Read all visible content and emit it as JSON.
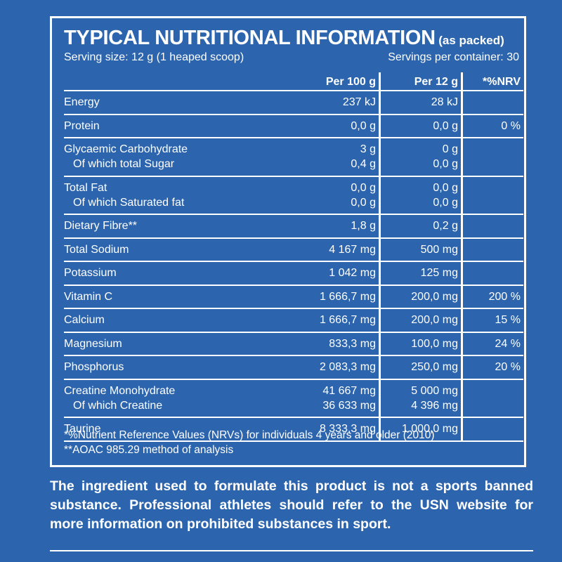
{
  "header": {
    "title": "TYPICAL NUTRITIONAL INFORMATION",
    "title_suffix": "(as packed)",
    "serving_size": "Serving size: 12 g (1 heaped scoop)",
    "servings_per_container": "Servings per container: 30"
  },
  "columns": {
    "per100": "Per 100 g",
    "perServing": "Per 12 g",
    "nrv": "*%NRV"
  },
  "rows": [
    {
      "lines": [
        {
          "name": "Energy",
          "per100": "237 kJ",
          "perServing": "28 kJ",
          "nrv": ""
        }
      ]
    },
    {
      "lines": [
        {
          "name": "Protein",
          "per100": "0,0 g",
          "perServing": "0,0 g",
          "nrv": "0 %"
        }
      ]
    },
    {
      "lines": [
        {
          "name": "Glycaemic Carbohydrate",
          "per100": "3 g",
          "perServing": "0 g",
          "nrv": ""
        },
        {
          "name": "Of which total Sugar",
          "per100": "0,4 g",
          "perServing": "0,0 g",
          "nrv": ""
        }
      ]
    },
    {
      "lines": [
        {
          "name": "Total Fat",
          "per100": "0,0 g",
          "perServing": "0,0 g",
          "nrv": ""
        },
        {
          "name": "Of which Saturated fat",
          "per100": "0,0 g",
          "perServing": "0,0 g",
          "nrv": ""
        }
      ]
    },
    {
      "lines": [
        {
          "name": "Dietary Fibre**",
          "per100": "1,8 g",
          "perServing": "0,2 g",
          "nrv": ""
        }
      ]
    },
    {
      "lines": [
        {
          "name": "Total Sodium",
          "per100": "4 167 mg",
          "perServing": "500 mg",
          "nrv": ""
        }
      ]
    },
    {
      "lines": [
        {
          "name": "Potassium",
          "per100": "1 042 mg",
          "perServing": "125 mg",
          "nrv": ""
        }
      ]
    },
    {
      "lines": [
        {
          "name": "Vitamin C",
          "per100": "1 666,7 mg",
          "perServing": "200,0 mg",
          "nrv": "200 %"
        }
      ]
    },
    {
      "lines": [
        {
          "name": "Calcium",
          "per100": "1 666,7 mg",
          "perServing": "200,0 mg",
          "nrv": "15 %"
        }
      ]
    },
    {
      "lines": [
        {
          "name": "Magnesium",
          "per100": "833,3 mg",
          "perServing": "100,0 mg",
          "nrv": "24 %"
        }
      ]
    },
    {
      "lines": [
        {
          "name": "Phosphorus",
          "per100": "2 083,3 mg",
          "perServing": "250,0 mg",
          "nrv": "20 %"
        }
      ]
    },
    {
      "lines": [
        {
          "name": "Creatine Monohydrate",
          "per100": "41 667 mg",
          "perServing": "5 000 mg",
          "nrv": ""
        },
        {
          "name": "Of which Creatine",
          "per100": "36 633 mg",
          "perServing": "4 396 mg",
          "nrv": ""
        }
      ]
    },
    {
      "lines": [
        {
          "name": "Taurine",
          "per100": "8 333,3 mg",
          "perServing": "1 000,0 mg",
          "nrv": ""
        }
      ]
    }
  ],
  "footnotes": [
    "*%Nutrient Reference Values (NRVs) for individuals 4 years and older (2010)",
    "**AOAC 985.29 method of analysis"
  ],
  "disclaimer": "The ingredient used to formulate this product is not a sports banned substance. Professional athletes should refer to the USN website for more information on prohibited substances in sport.",
  "colors": {
    "background": "#2c65ae",
    "foreground": "#ffffff"
  }
}
